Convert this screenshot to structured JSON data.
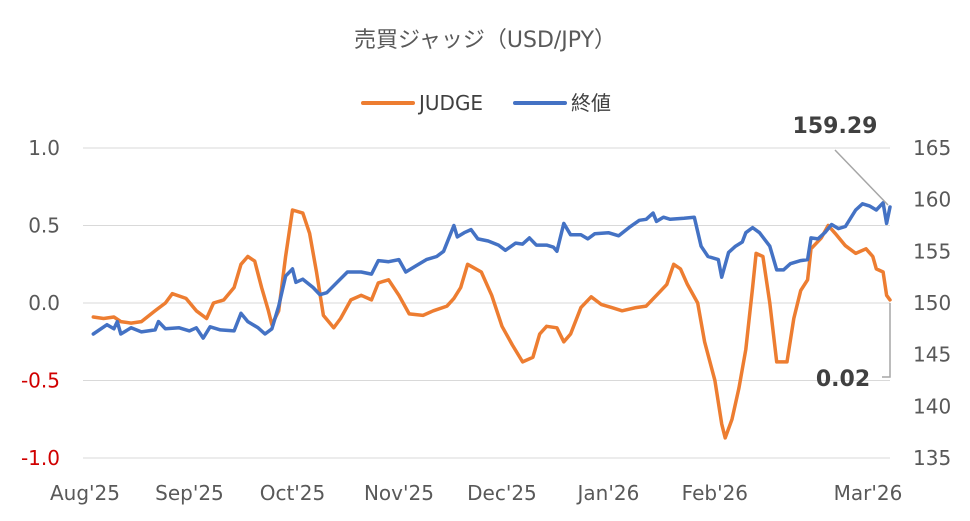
{
  "chart_data": {
    "type": "line",
    "title": "売買ジャッジ（USD/JPY）",
    "x_tick_labels": [
      "Aug'25",
      "Sep'25",
      "Oct'25",
      "Nov'25",
      "Dec'25",
      "Jan'26",
      "Feb'26",
      "Mar'26"
    ],
    "y_left": {
      "ticks": [
        "1.0",
        "0.5",
        "0.0",
        "-0.5",
        "-1.0"
      ],
      "range": [
        -1.0,
        1.0
      ],
      "negative_color": "#d00000"
    },
    "y_right": {
      "ticks": [
        "165",
        "160",
        "155",
        "150",
        "145",
        "140",
        "135"
      ],
      "range": [
        135,
        165
      ]
    },
    "grid": true,
    "legend_position": "top-center",
    "series": [
      {
        "name": "JUDGE",
        "axis": "left",
        "color": "#ed7d31",
        "points": [
          [
            "2025-08-04",
            -0.09
          ],
          [
            "2025-08-07",
            -0.1
          ],
          [
            "2025-08-10",
            -0.09
          ],
          [
            "2025-08-12",
            -0.12
          ],
          [
            "2025-08-15",
            -0.13
          ],
          [
            "2025-08-18",
            -0.12
          ],
          [
            "2025-08-22",
            -0.05
          ],
          [
            "2025-08-25",
            0.0
          ],
          [
            "2025-08-27",
            0.06
          ],
          [
            "2025-08-31",
            0.03
          ],
          [
            "2025-09-03",
            -0.05
          ],
          [
            "2025-09-06",
            -0.1
          ],
          [
            "2025-09-08",
            0.0
          ],
          [
            "2025-09-11",
            0.02
          ],
          [
            "2025-09-14",
            0.1
          ],
          [
            "2025-09-16",
            0.25
          ],
          [
            "2025-09-18",
            0.3
          ],
          [
            "2025-09-20",
            0.27
          ],
          [
            "2025-09-22",
            0.1
          ],
          [
            "2025-09-24",
            -0.05
          ],
          [
            "2025-09-25",
            -0.14
          ],
          [
            "2025-09-27",
            -0.05
          ],
          [
            "2025-09-29",
            0.3
          ],
          [
            "2025-10-01",
            0.6
          ],
          [
            "2025-10-04",
            0.58
          ],
          [
            "2025-10-06",
            0.45
          ],
          [
            "2025-10-08",
            0.2
          ],
          [
            "2025-10-10",
            -0.08
          ],
          [
            "2025-10-13",
            -0.16
          ],
          [
            "2025-10-15",
            -0.1
          ],
          [
            "2025-10-18",
            0.02
          ],
          [
            "2025-10-21",
            0.05
          ],
          [
            "2025-10-24",
            0.02
          ],
          [
            "2025-10-26",
            0.13
          ],
          [
            "2025-10-29",
            0.15
          ],
          [
            "2025-11-01",
            0.05
          ],
          [
            "2025-11-04",
            -0.07
          ],
          [
            "2025-11-08",
            -0.08
          ],
          [
            "2025-11-11",
            -0.05
          ],
          [
            "2025-11-15",
            -0.02
          ],
          [
            "2025-11-17",
            0.03
          ],
          [
            "2025-11-19",
            0.1
          ],
          [
            "2025-11-21",
            0.25
          ],
          [
            "2025-11-25",
            0.2
          ],
          [
            "2025-11-28",
            0.05
          ],
          [
            "2025-12-01",
            -0.15
          ],
          [
            "2025-12-04",
            -0.27
          ],
          [
            "2025-12-07",
            -0.38
          ],
          [
            "2025-12-10",
            -0.35
          ],
          [
            "2025-12-12",
            -0.2
          ],
          [
            "2025-12-14",
            -0.15
          ],
          [
            "2025-12-17",
            -0.16
          ],
          [
            "2025-12-19",
            -0.25
          ],
          [
            "2025-12-21",
            -0.2
          ],
          [
            "2025-12-24",
            -0.03
          ],
          [
            "2025-12-27",
            0.04
          ],
          [
            "2025-12-30",
            -0.01
          ],
          [
            "2026-01-02",
            -0.03
          ],
          [
            "2026-01-05",
            -0.05
          ],
          [
            "2026-01-09",
            -0.03
          ],
          [
            "2026-01-12",
            -0.02
          ],
          [
            "2026-01-15",
            0.05
          ],
          [
            "2026-01-18",
            0.12
          ],
          [
            "2026-01-20",
            0.25
          ],
          [
            "2026-01-22",
            0.22
          ],
          [
            "2026-01-24",
            0.12
          ],
          [
            "2026-01-27",
            0.0
          ],
          [
            "2026-01-29",
            -0.25
          ],
          [
            "2026-02-01",
            -0.5
          ],
          [
            "2026-02-03",
            -0.78
          ],
          [
            "2026-02-04",
            -0.87
          ],
          [
            "2026-02-06",
            -0.75
          ],
          [
            "2026-02-08",
            -0.55
          ],
          [
            "2026-02-10",
            -0.3
          ],
          [
            "2026-02-12",
            0.1
          ],
          [
            "2026-02-13",
            0.32
          ],
          [
            "2026-02-15",
            0.3
          ],
          [
            "2026-02-17",
            0.0
          ],
          [
            "2026-02-19",
            -0.38
          ],
          [
            "2026-02-22",
            -0.38
          ],
          [
            "2026-02-24",
            -0.1
          ],
          [
            "2026-02-26",
            0.08
          ],
          [
            "2026-02-28",
            0.15
          ],
          [
            "2026-03-01",
            0.35
          ],
          [
            "2026-03-04",
            0.42
          ],
          [
            "2026-03-06",
            0.5
          ],
          [
            "2026-03-08",
            0.45
          ],
          [
            "2026-03-11",
            0.37
          ],
          [
            "2026-03-14",
            0.32
          ],
          [
            "2026-03-17",
            0.35
          ],
          [
            "2026-03-19",
            0.3
          ],
          [
            "2026-03-20",
            0.22
          ],
          [
            "2026-03-22",
            0.2
          ],
          [
            "2026-03-23",
            0.05
          ],
          [
            "2026-03-24",
            0.02
          ]
        ]
      },
      {
        "name": "終値",
        "axis": "right",
        "color": "#4472c4",
        "points": [
          [
            "2025-08-04",
            147.0
          ],
          [
            "2025-08-08",
            147.9
          ],
          [
            "2025-08-10",
            147.5
          ],
          [
            "2025-08-11",
            148.2
          ],
          [
            "2025-08-12",
            147.0
          ],
          [
            "2025-08-15",
            147.6
          ],
          [
            "2025-08-18",
            147.2
          ],
          [
            "2025-08-22",
            147.4
          ],
          [
            "2025-08-23",
            148.2
          ],
          [
            "2025-08-25",
            147.5
          ],
          [
            "2025-08-29",
            147.6
          ],
          [
            "2025-09-01",
            147.3
          ],
          [
            "2025-09-03",
            147.6
          ],
          [
            "2025-09-05",
            146.6
          ],
          [
            "2025-09-07",
            147.7
          ],
          [
            "2025-09-10",
            147.4
          ],
          [
            "2025-09-14",
            147.3
          ],
          [
            "2025-09-16",
            149.0
          ],
          [
            "2025-09-18",
            148.2
          ],
          [
            "2025-09-21",
            147.6
          ],
          [
            "2025-09-23",
            147.0
          ],
          [
            "2025-09-25",
            147.5
          ],
          [
            "2025-09-27",
            149.7
          ],
          [
            "2025-09-29",
            152.6
          ],
          [
            "2025-10-01",
            153.3
          ],
          [
            "2025-10-02",
            152.0
          ],
          [
            "2025-10-04",
            152.3
          ],
          [
            "2025-10-07",
            151.5
          ],
          [
            "2025-10-09",
            150.8
          ],
          [
            "2025-10-11",
            151.0
          ],
          [
            "2025-10-14",
            152.0
          ],
          [
            "2025-10-17",
            153.0
          ],
          [
            "2025-10-21",
            153.0
          ],
          [
            "2025-10-24",
            152.8
          ],
          [
            "2025-10-26",
            154.1
          ],
          [
            "2025-10-29",
            154.0
          ],
          [
            "2025-11-01",
            154.2
          ],
          [
            "2025-11-03",
            153.0
          ],
          [
            "2025-11-06",
            153.6
          ],
          [
            "2025-11-09",
            154.2
          ],
          [
            "2025-11-12",
            154.5
          ],
          [
            "2025-11-14",
            155.0
          ],
          [
            "2025-11-17",
            157.5
          ],
          [
            "2025-11-18",
            156.4
          ],
          [
            "2025-11-20",
            156.8
          ],
          [
            "2025-11-22",
            157.1
          ],
          [
            "2025-11-24",
            156.2
          ],
          [
            "2025-11-27",
            156.0
          ],
          [
            "2025-11-30",
            155.6
          ],
          [
            "2025-12-02",
            155.1
          ],
          [
            "2025-12-05",
            155.8
          ],
          [
            "2025-12-07",
            155.7
          ],
          [
            "2025-12-09",
            156.3
          ],
          [
            "2025-12-11",
            155.6
          ],
          [
            "2025-12-14",
            155.6
          ],
          [
            "2025-12-16",
            155.4
          ],
          [
            "2025-12-17",
            155.0
          ],
          [
            "2025-12-19",
            157.7
          ],
          [
            "2025-12-21",
            156.6
          ],
          [
            "2025-12-24",
            156.6
          ],
          [
            "2025-12-26",
            156.2
          ],
          [
            "2025-12-28",
            156.7
          ],
          [
            "2026-01-01",
            156.8
          ],
          [
            "2026-01-04",
            156.5
          ],
          [
            "2026-01-07",
            157.3
          ],
          [
            "2026-01-10",
            158.0
          ],
          [
            "2026-01-12",
            158.1
          ],
          [
            "2026-01-14",
            158.7
          ],
          [
            "2026-01-15",
            157.9
          ],
          [
            "2026-01-17",
            158.3
          ],
          [
            "2026-01-19",
            158.1
          ],
          [
            "2026-01-23",
            158.2
          ],
          [
            "2026-01-26",
            158.3
          ],
          [
            "2026-01-28",
            155.5
          ],
          [
            "2026-01-30",
            154.5
          ],
          [
            "2026-02-02",
            154.2
          ],
          [
            "2026-02-03",
            152.5
          ],
          [
            "2026-02-05",
            154.9
          ],
          [
            "2026-02-07",
            155.5
          ],
          [
            "2026-02-09",
            155.9
          ],
          [
            "2026-02-10",
            156.8
          ],
          [
            "2026-02-12",
            157.3
          ],
          [
            "2026-02-14",
            156.8
          ],
          [
            "2026-02-17",
            155.5
          ],
          [
            "2026-02-19",
            153.2
          ],
          [
            "2026-02-21",
            153.2
          ],
          [
            "2026-02-23",
            153.8
          ],
          [
            "2026-02-26",
            154.1
          ],
          [
            "2026-02-28",
            154.2
          ],
          [
            "2026-03-01",
            156.3
          ],
          [
            "2026-03-03",
            156.2
          ],
          [
            "2026-03-05",
            156.8
          ],
          [
            "2026-03-07",
            157.6
          ],
          [
            "2026-03-09",
            157.2
          ],
          [
            "2026-03-11",
            157.4
          ],
          [
            "2026-03-14",
            159.0
          ],
          [
            "2026-03-16",
            159.6
          ],
          [
            "2026-03-18",
            159.4
          ],
          [
            "2026-03-20",
            159.0
          ],
          [
            "2026-03-22",
            159.7
          ],
          [
            "2026-03-23",
            157.7
          ],
          [
            "2026-03-24",
            159.29
          ]
        ]
      }
    ],
    "annotations": [
      {
        "text": "159.29",
        "series": "終値"
      },
      {
        "text": "0.02",
        "series": "JUDGE"
      }
    ]
  }
}
